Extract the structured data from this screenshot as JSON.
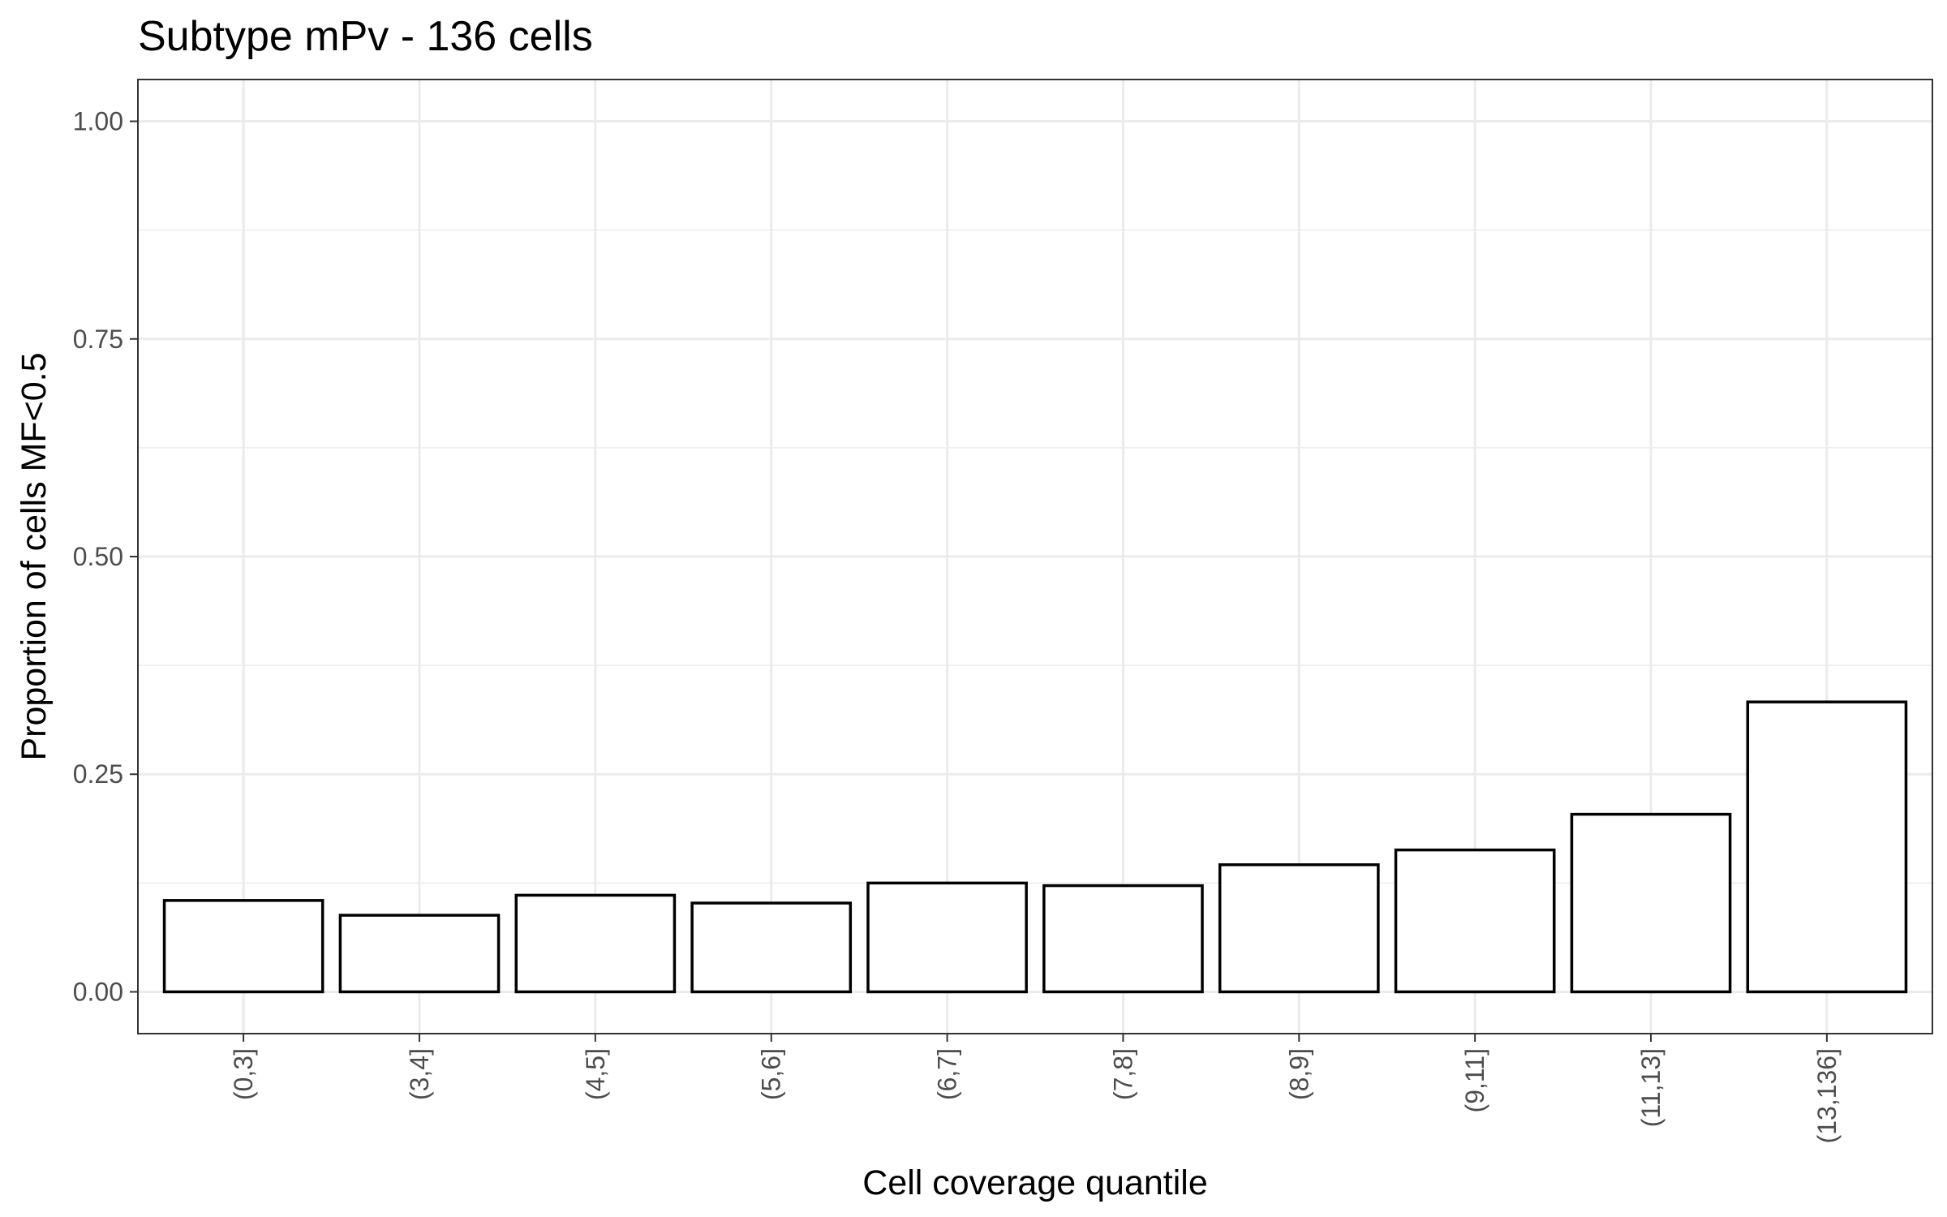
{
  "chart_data": {
    "type": "bar",
    "title": "Subtype mPv - 136 cells",
    "xlabel": "Cell coverage quantile",
    "ylabel": "Proportion of cells MF<0.5",
    "categories": [
      "(0,3]",
      "(3,4]",
      "(4,5]",
      "(5,6]",
      "(6,7]",
      "(7,8]",
      "(8,9]",
      "(9,11]",
      "(11,13]",
      "(13,136]"
    ],
    "values": [
      0.105,
      0.088,
      0.111,
      0.102,
      0.125,
      0.122,
      0.146,
      0.163,
      0.204,
      0.333
    ],
    "ylim": [
      -0.048,
      1.048
    ],
    "yticks": [
      0,
      0.25,
      0.5,
      0.75,
      1
    ],
    "ytick_labels": [
      "0.00",
      "0.25",
      "0.50",
      "0.75",
      "1.00"
    ],
    "grid": true,
    "legend": "none",
    "colors": {
      "bar_fill": "#ffffff",
      "bar_outline": "#000000",
      "grid": "#ebebeb",
      "panel_border": "#333333",
      "tick_text": "#4d4d4d"
    }
  }
}
